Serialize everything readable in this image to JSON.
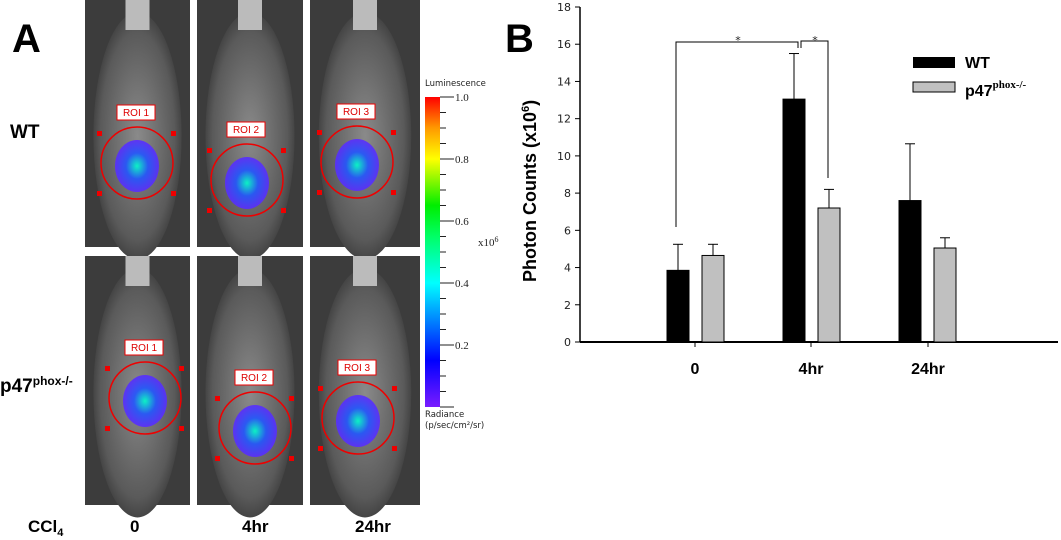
{
  "panel_a": {
    "label": "A",
    "row_labels": [
      "WT",
      "p47",
      "phox-/-"
    ],
    "treatment_label": "CCl",
    "treatment_sub": "4",
    "column_labels": [
      "0",
      "4hr",
      "24hr"
    ],
    "roi_labels": [
      [
        "ROI 1",
        "ROI 2",
        "ROI 3"
      ],
      [
        "ROI 1",
        "ROI 2",
        "ROI 3"
      ]
    ],
    "colorbar": {
      "title": "Luminescence",
      "ticks": [
        "1.0",
        "0.8",
        "0.6",
        "0.4",
        "0.2"
      ],
      "multiplier": "x10",
      "multiplier_exp": "6",
      "unit_line1": "Radiance",
      "unit_line2": "(p/sec/cm²/sr)"
    }
  },
  "panel_b": {
    "label": "B"
  },
  "chart_data": {
    "type": "bar",
    "title": "",
    "xlabel": "",
    "ylabel": "Photon Counts (x10",
    "ylabel_exp": "6",
    "ylabel_close": ")",
    "ylim": [
      0,
      18
    ],
    "yticks": [
      "0",
      "2",
      "4",
      "6",
      "8",
      "10",
      "12",
      "14",
      "16",
      "18"
    ],
    "categories": [
      "0",
      "4hr",
      "24hr"
    ],
    "legend_position": "top-right",
    "series": [
      {
        "name": "WT",
        "color": "#000000",
        "values": [
          3.85,
          13.05,
          7.6
        ],
        "error_upper": [
          5.25,
          15.5,
          10.65
        ]
      },
      {
        "name": "p47",
        "name_sup": "phox-/-",
        "color": "#c0c0c0",
        "values": [
          4.65,
          7.2,
          5.05
        ],
        "error_upper": [
          5.25,
          8.2,
          5.6
        ]
      }
    ],
    "annotations": [
      "*",
      "*"
    ]
  }
}
